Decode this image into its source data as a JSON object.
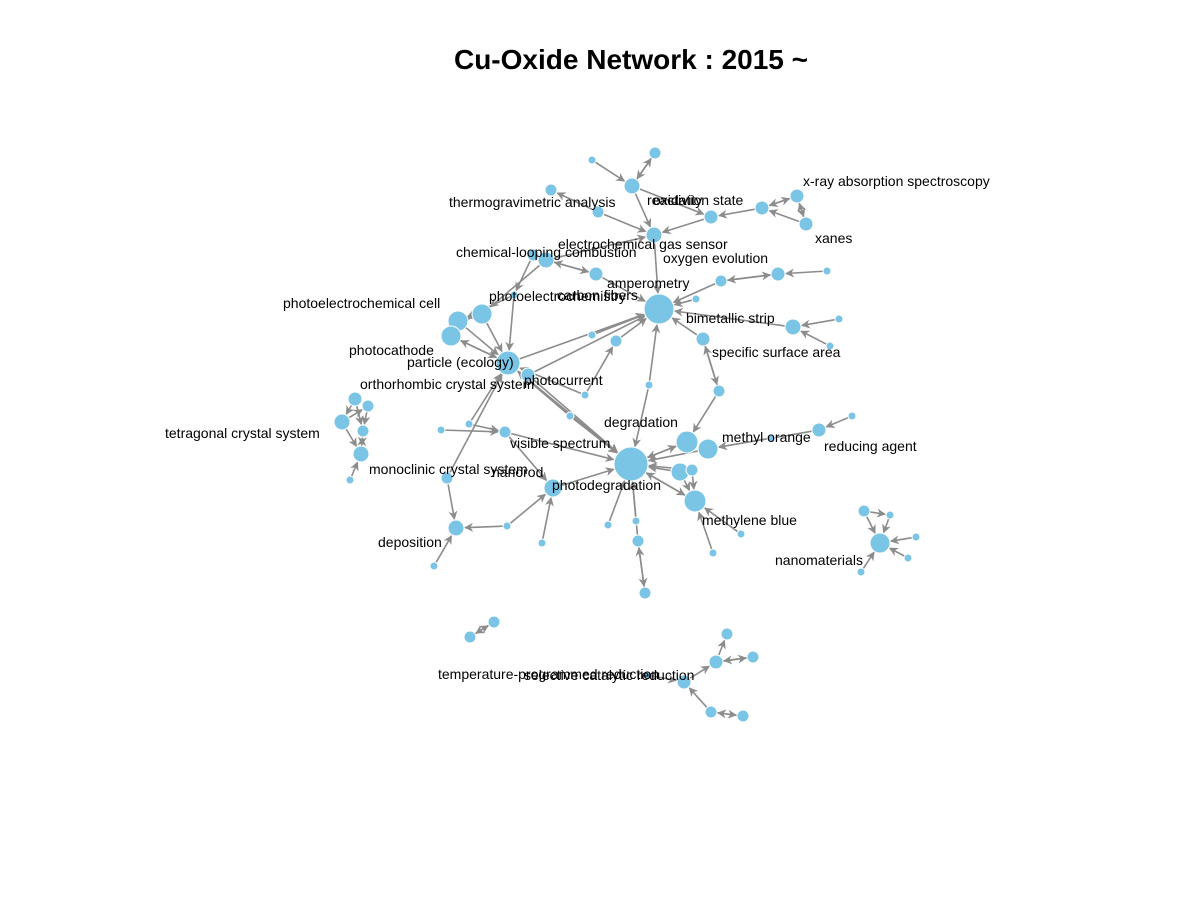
{
  "title": "Cu-Oxide Network : 2015 ~",
  "colors": {
    "node": "#7ac4e6",
    "edge": "#8c8c8c"
  },
  "labels": {
    "thermogravimetric": "thermogravimetric analysis",
    "reactivity": "reactivity",
    "oxidation_state": "oxidation state",
    "xray": "x-ray absorption spectroscopy",
    "xanes": "xanes",
    "gas_sensor": "electrochemical gas sensor",
    "chem_looping": "chemical-looping combustion",
    "oxygen_evolution": "oxygen evolution",
    "amperometry": "amperometry",
    "photoelectrochemistry": "photoelectrochemistry",
    "carbon_fibers": "carbon fibers",
    "pec_cell": "photoelectrochemical cell",
    "bimetallic": "bimetallic strip",
    "photocathode": "photocathode",
    "specific_surface": "specific surface area",
    "particle": "particle (ecology)",
    "photocurrent": "photocurrent",
    "orthorhombic": "orthorhombic crystal system",
    "tetragonal": "tetragonal crystal system",
    "degradation": "degradation",
    "methyl_orange": "methyl orange",
    "visible_spectrum": "visible spectrum",
    "reducing_agent": "reducing agent",
    "monoclinic": "monoclinic crystal system",
    "nanorod": "nanorod",
    "photodegradation": "photodegradation",
    "methylene_blue": "methylene blue",
    "deposition": "deposition",
    "nanomaterials": "nanomaterials",
    "tpr": "temperature-programmed reduction",
    "scr": "selective catalytic reduction"
  }
}
